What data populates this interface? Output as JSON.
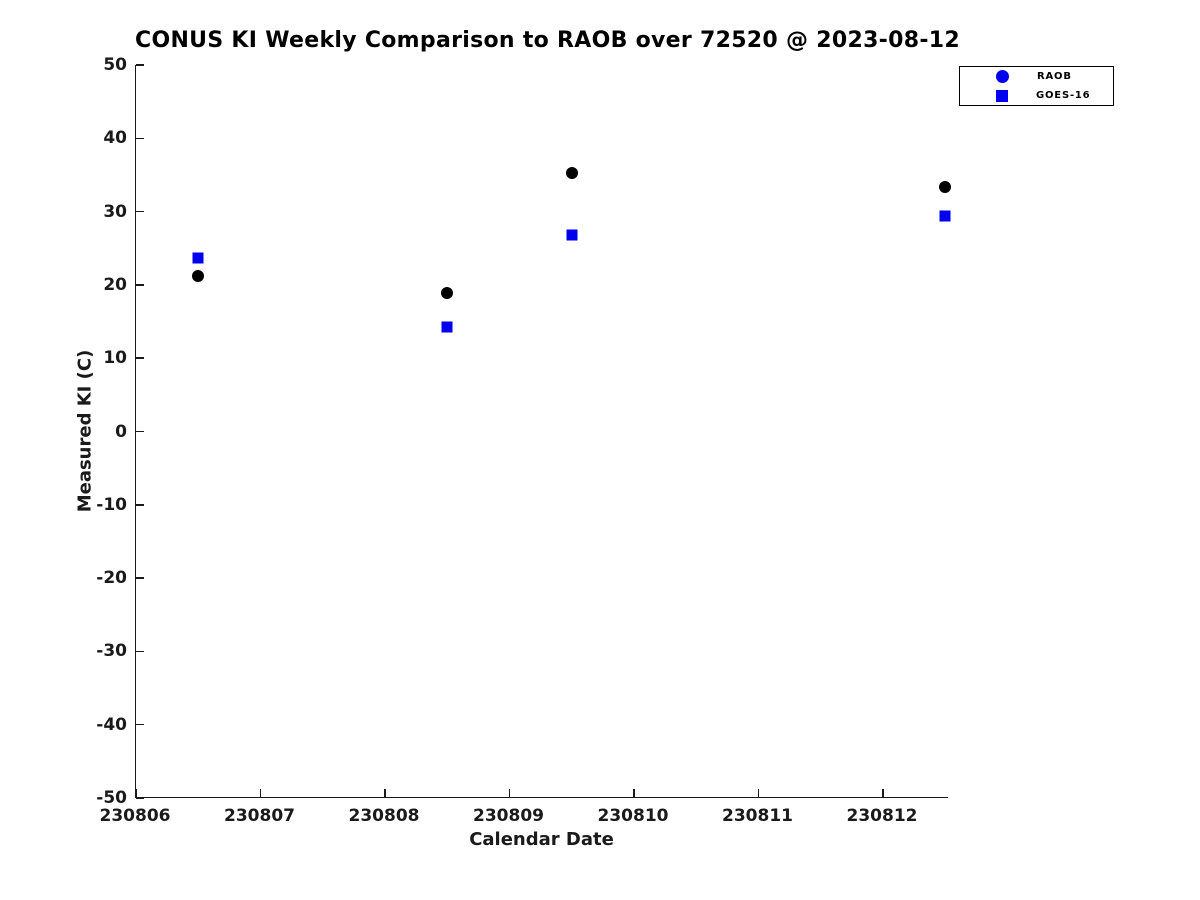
{
  "title": "CONUS KI Weekly Comparison to RAOB over 72520 @ 2023-08-12",
  "colors": {
    "raob_point": "#000000",
    "goes16_point": "#0000ee",
    "legend_marker": "#0000ee",
    "axis": "#1a1a1a",
    "background": "#ffffff"
  },
  "chart_data": {
    "type": "scatter",
    "title": "CONUS KI Weekly Comparison to RAOB over 72520 @ 2023-08-12",
    "xlabel": "Calendar Date",
    "ylabel": "Measured KI (C)",
    "xlim": [
      230806,
      230812.53
    ],
    "ylim": [
      -50,
      50
    ],
    "x_ticks": [
      230806,
      230807,
      230808,
      230809,
      230810,
      230811,
      230812
    ],
    "y_ticks": [
      50,
      40,
      30,
      20,
      10,
      0,
      -10,
      -20,
      -30,
      -40,
      -50
    ],
    "grid": false,
    "legend_position": "outside-top-right",
    "x": [
      230806.5,
      230808.5,
      230809.5,
      230812.5
    ],
    "series": [
      {
        "name": "RAOB",
        "marker": "circle",
        "color": "#000000",
        "legend_color": "#0000ee",
        "values": [
          21.2,
          18.9,
          35.3,
          33.4
        ]
      },
      {
        "name": "GOES-16",
        "marker": "square",
        "color": "#0000ee",
        "legend_color": "#0000ee",
        "values": [
          23.7,
          14.3,
          26.8,
          29.4
        ]
      }
    ]
  }
}
